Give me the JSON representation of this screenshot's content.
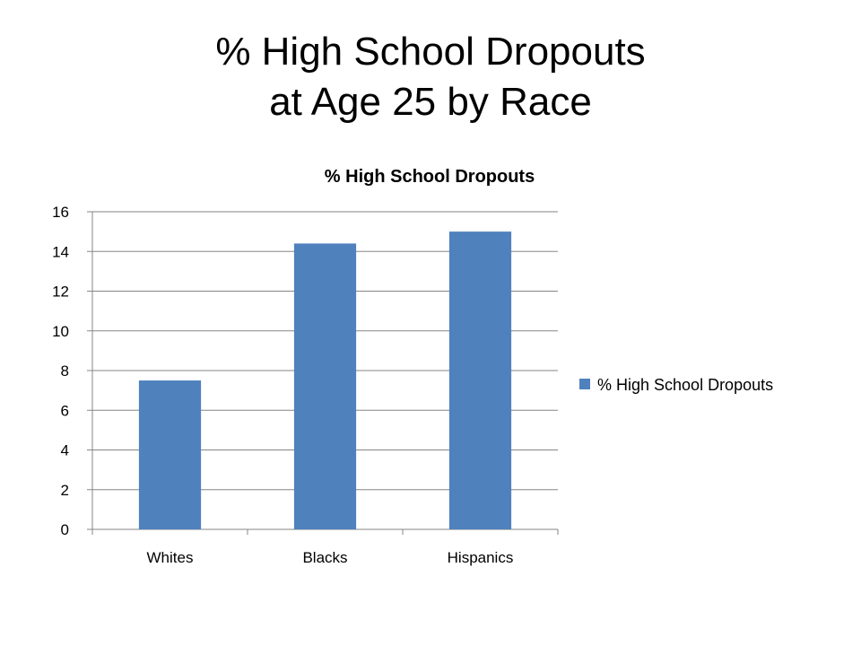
{
  "slide": {
    "title_line1": "% High School Dropouts",
    "title_line2": "at Age 25 by Race"
  },
  "chart_data": {
    "type": "bar",
    "title": "% High School Dropouts",
    "categories": [
      "Whites",
      "Blacks",
      "Hispanics"
    ],
    "series": [
      {
        "name": "% High School Dropouts",
        "values": [
          7.5,
          14.4,
          15.0
        ],
        "color": "#4F81BD"
      }
    ],
    "ylim": [
      0,
      16
    ],
    "yticks": [
      0,
      2,
      4,
      6,
      8,
      10,
      12,
      14,
      16
    ],
    "grid": true,
    "legend": "right",
    "xlabel": "",
    "ylabel": ""
  }
}
